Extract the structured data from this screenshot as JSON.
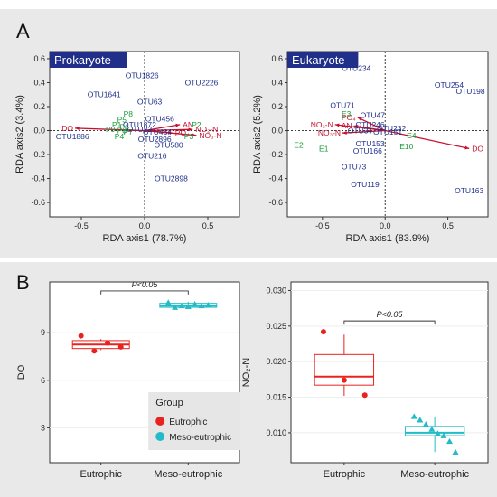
{
  "panel_labels": {
    "a": "A",
    "b": "B"
  },
  "colors": {
    "red": "#c8102e",
    "green": "#1a9a3a",
    "blue": "#1f2f8a",
    "eutrophic": "#e8231f",
    "meso": "#22bcc8"
  },
  "chart_data": [
    {
      "type": "scatter",
      "title": "Prokaryote",
      "xlabel": "RDA axis1 (78.7%)",
      "ylabel": "RDA axis2 (3.4%)",
      "xlim": [
        -0.75,
        0.75
      ],
      "ylim": [
        -0.72,
        0.66
      ],
      "xticks": [
        -0.5,
        0.0,
        0.5
      ],
      "yticks": [
        -0.6,
        -0.4,
        -0.2,
        0.0,
        0.2,
        0.4,
        0.6
      ],
      "tick_labels_x": [
        "-0.5",
        "0.0",
        "0.5"
      ],
      "tick_labels_y": [
        "-0.6",
        "-0.4",
        "-0.2",
        "0.0",
        "0.2",
        "0.4",
        "0.6"
      ],
      "otus": [
        {
          "label": "OTU1826",
          "x": -0.02,
          "y": 0.46
        },
        {
          "label": "OTU2226",
          "x": 0.45,
          "y": 0.4
        },
        {
          "label": "OTU1641",
          "x": -0.32,
          "y": 0.3
        },
        {
          "label": "OTU63",
          "x": 0.04,
          "y": 0.24
        },
        {
          "label": "OTU456",
          "x": 0.12,
          "y": 0.1
        },
        {
          "label": "OTU1872",
          "x": -0.04,
          "y": 0.05
        },
        {
          "label": "OTU22",
          "x": -0.04,
          "y": 0.01
        },
        {
          "label": "OTU464",
          "x": 0.1,
          "y": -0.01
        },
        {
          "label": "OTU2896",
          "x": 0.08,
          "y": -0.07
        },
        {
          "label": "OTU580",
          "x": 0.19,
          "y": -0.12
        },
        {
          "label": "OTU1886",
          "x": -0.57,
          "y": -0.05
        },
        {
          "label": "OTU216",
          "x": 0.06,
          "y": -0.21
        },
        {
          "label": "OTU2898",
          "x": 0.21,
          "y": -0.4
        }
      ],
      "samples": [
        {
          "label": "P8",
          "x": -0.13,
          "y": 0.14
        },
        {
          "label": "P5",
          "x": -0.18,
          "y": 0.09
        },
        {
          "label": "P1",
          "x": -0.22,
          "y": 0.05
        },
        {
          "label": "P6",
          "x": -0.16,
          "y": 0.03
        },
        {
          "label": "P9",
          "x": -0.27,
          "y": 0.01
        },
        {
          "label": "P8",
          "x": -0.18,
          "y": 0.0
        },
        {
          "label": "P7",
          "x": -0.13,
          "y": -0.01
        },
        {
          "label": "P4",
          "x": -0.2,
          "y": -0.05
        },
        {
          "label": "P2",
          "x": 0.41,
          "y": 0.05
        },
        {
          "label": "P3",
          "x": 0.35,
          "y": -0.05
        }
      ],
      "vectors": [
        {
          "label": "DO",
          "x": -0.55,
          "y": 0.02
        },
        {
          "label": "AN",
          "x": 0.28,
          "y": 0.05
        },
        {
          "label": "NO₂-N",
          "x": 0.38,
          "y": 0.01
        },
        {
          "label": "PO₄",
          "x": 0.22,
          "y": -0.02
        },
        {
          "label": "NO₃-N",
          "x": 0.41,
          "y": -0.04
        }
      ]
    },
    {
      "type": "scatter",
      "title": "Eukaryote",
      "xlabel": "RDA axis1 (83.9%)",
      "ylabel": "RDA axis2 (5.2%)",
      "xlim": [
        -0.78,
        0.82
      ],
      "ylim": [
        -0.72,
        0.66
      ],
      "xticks": [
        -0.5,
        0.0,
        0.5
      ],
      "yticks": [
        -0.6,
        -0.4,
        -0.2,
        0.0,
        0.2,
        0.4,
        0.6
      ],
      "tick_labels_x": [
        "-0.5",
        "0.0",
        "0.5"
      ],
      "tick_labels_y": [
        "-0.6",
        "-0.4",
        "-0.2",
        "0.0",
        "0.2",
        "0.4",
        "0.6"
      ],
      "otus": [
        {
          "label": "OTU234",
          "x": -0.23,
          "y": 0.52
        },
        {
          "label": "OTU254",
          "x": 0.51,
          "y": 0.38
        },
        {
          "label": "OTU198",
          "x": 0.68,
          "y": 0.33
        },
        {
          "label": "OTU71",
          "x": -0.34,
          "y": 0.21
        },
        {
          "label": "OTU47",
          "x": -0.1,
          "y": 0.13
        },
        {
          "label": "OTU246",
          "x": -0.12,
          "y": 0.05
        },
        {
          "label": "OTU232",
          "x": 0.05,
          "y": 0.02
        },
        {
          "label": "OTU34",
          "x": -0.2,
          "y": 0.0
        },
        {
          "label": "OTU151",
          "x": 0.02,
          "y": -0.01
        },
        {
          "label": "OTU153",
          "x": -0.12,
          "y": -0.11
        },
        {
          "label": "OTU166",
          "x": -0.14,
          "y": -0.17
        },
        {
          "label": "OTU73",
          "x": -0.25,
          "y": -0.3
        },
        {
          "label": "OTU119",
          "x": -0.16,
          "y": -0.45
        },
        {
          "label": "OTU163",
          "x": 0.67,
          "y": -0.5
        }
      ],
      "samples": [
        {
          "label": "E3",
          "x": -0.31,
          "y": 0.14
        },
        {
          "label": "E4",
          "x": 0.21,
          "y": -0.04
        },
        {
          "label": "E2",
          "x": -0.69,
          "y": -0.12
        },
        {
          "label": "E1",
          "x": -0.49,
          "y": -0.15
        },
        {
          "label": "E10",
          "x": 0.17,
          "y": -0.13
        }
      ],
      "vectors": [
        {
          "label": "DO",
          "x": 0.67,
          "y": -0.15
        },
        {
          "label": "PO₄",
          "x": -0.22,
          "y": 0.11
        },
        {
          "label": "AN",
          "x": -0.25,
          "y": 0.04
        },
        {
          "label": "NO₂-N",
          "x": -0.4,
          "y": 0.05
        },
        {
          "label": "NO₃-N",
          "x": -0.34,
          "y": -0.02
        }
      ]
    },
    {
      "type": "box",
      "ylabel": "DO",
      "categories": [
        "Eutrophic",
        "Meso-eutrophic"
      ],
      "ylim": [
        0.8,
        12.2
      ],
      "yticks": [
        3,
        6,
        9
      ],
      "tick_labels_y": [
        "3",
        "6",
        "9"
      ],
      "significance": "P<0.05",
      "boxes": [
        {
          "q1": 8.0,
          "median": 8.25,
          "q3": 8.5,
          "min": 7.9,
          "max": 8.6
        },
        {
          "q1": 10.6,
          "median": 10.7,
          "q3": 10.85,
          "min": 10.6,
          "max": 10.95
        }
      ],
      "points": [
        {
          "group": 0,
          "values": [
            8.8,
            7.85,
            8.35,
            8.1
          ]
        },
        {
          "group": 1,
          "values": [
            10.9,
            10.6,
            10.7,
            10.65,
            10.8,
            10.7,
            10.75
          ]
        }
      ],
      "legend": {
        "title": "Group",
        "items": [
          "Eutrophic",
          "Meso-eutrophic"
        ],
        "placement": "bottom-right"
      }
    },
    {
      "type": "box",
      "ylabel": "NO₂-N",
      "categories": [
        "Eutrophic",
        "Meso-eutrophic"
      ],
      "ylim": [
        0.0058,
        0.0312
      ],
      "yticks": [
        0.01,
        0.015,
        0.02,
        0.025,
        0.03
      ],
      "tick_labels_y": [
        "0.010",
        "0.015",
        "0.020",
        "0.025",
        "0.030"
      ],
      "significance": "P<0.05",
      "boxes": [
        {
          "q1": 0.0167,
          "median": 0.0179,
          "q3": 0.021,
          "min": 0.0152,
          "max": 0.0238
        },
        {
          "q1": 0.0096,
          "median": 0.01,
          "q3": 0.0109,
          "min": 0.0073,
          "max": 0.0123
        }
      ],
      "points": [
        {
          "group": 0,
          "values": [
            0.0242,
            0.0174,
            0.0153
          ]
        },
        {
          "group": 1,
          "values": [
            0.0123,
            0.0118,
            0.0112,
            0.0105,
            0.0099,
            0.0096,
            0.0088,
            0.0073
          ]
        }
      ]
    }
  ]
}
